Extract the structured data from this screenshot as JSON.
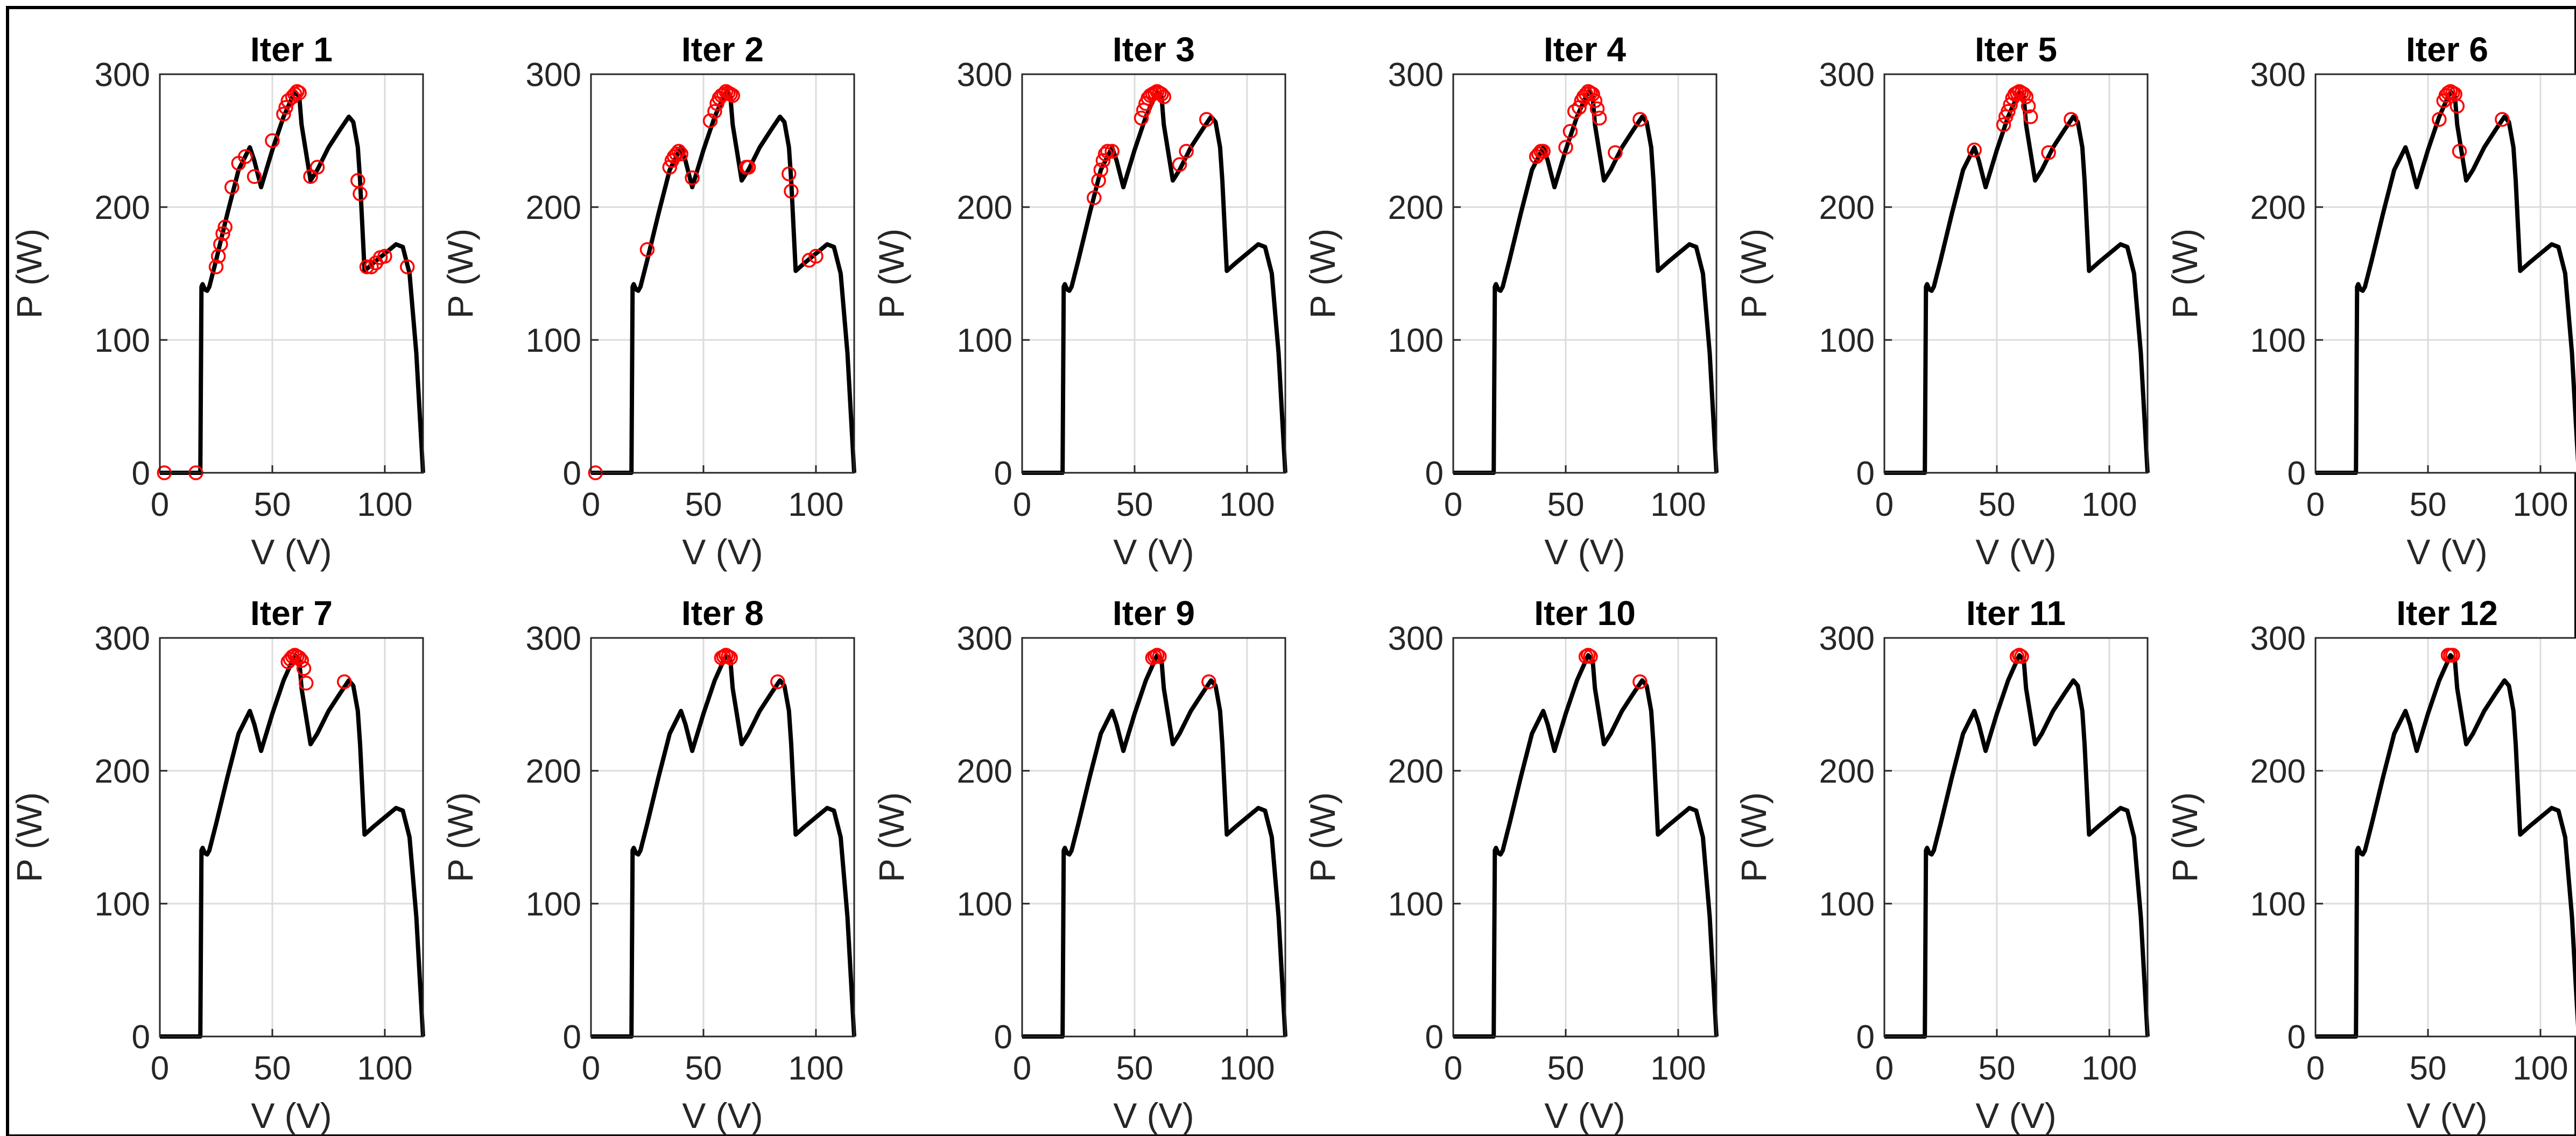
{
  "chart_data": {
    "type": "scatter",
    "layout": {
      "rows": 2,
      "cols": 6
    },
    "curve": {
      "name": "",
      "x": [
        0,
        18,
        18.5,
        19,
        20,
        21,
        22,
        25,
        30,
        35,
        40,
        42,
        45,
        50,
        55,
        60,
        62,
        63,
        67,
        70,
        75,
        80,
        84,
        86,
        88,
        89,
        91,
        95,
        100,
        105,
        108,
        111,
        114,
        116,
        117
      ],
      "y": [
        0,
        0,
        140,
        142,
        138,
        137,
        140,
        160,
        195,
        228,
        245,
        235,
        215,
        243,
        268,
        287,
        283,
        262,
        220,
        228,
        245,
        258,
        268,
        264,
        245,
        220,
        152,
        158,
        165,
        172,
        170,
        150,
        90,
        30,
        0
      ]
    },
    "panels": [
      {
        "title": "Iter 1",
        "xlabel": "V (V)",
        "ylabel": "P (W)",
        "xlim": [
          0,
          117
        ],
        "ylim": [
          0,
          300
        ],
        "xticks": [
          0,
          50,
          100
        ],
        "yticks": [
          0,
          100,
          200,
          300
        ],
        "points": {
          "x": [
            2,
            16,
            25,
            26,
            27,
            28,
            29,
            32,
            35,
            38,
            42,
            50,
            55,
            56,
            57,
            59,
            60,
            61,
            62,
            67,
            70,
            88,
            89,
            92,
            94,
            96,
            98,
            100,
            110
          ],
          "y": [
            0,
            0,
            155,
            163,
            172,
            180,
            185,
            215,
            233,
            238,
            223,
            250,
            270,
            275,
            280,
            283,
            285,
            287,
            286,
            223,
            230,
            220,
            210,
            155,
            155,
            158,
            162,
            163,
            155
          ]
        }
      },
      {
        "title": "Iter 2",
        "xlabel": "V (V)",
        "ylabel": "P (W)",
        "xlim": [
          0,
          117
        ],
        "ylim": [
          0,
          300
        ],
        "xticks": [
          0,
          50,
          100
        ],
        "yticks": [
          0,
          100,
          200,
          300
        ],
        "points": {
          "x": [
            2,
            25,
            35,
            36,
            37,
            38,
            39,
            40,
            45,
            53,
            55,
            56,
            57,
            58,
            59,
            60,
            61,
            62,
            63,
            69,
            70,
            88,
            89,
            97,
            100
          ],
          "y": [
            0,
            168,
            230,
            235,
            238,
            240,
            242,
            240,
            222,
            265,
            272,
            278,
            282,
            284,
            285,
            287,
            286,
            285,
            284,
            230,
            230,
            225,
            212,
            160,
            163
          ]
        }
      },
      {
        "title": "Iter 3",
        "xlabel": "V (V)",
        "ylabel": "P (W)",
        "xlim": [
          0,
          117
        ],
        "ylim": [
          0,
          300
        ],
        "xticks": [
          0,
          50,
          100
        ],
        "yticks": [
          0,
          100,
          200,
          300
        ],
        "points": {
          "x": [
            32,
            34,
            35,
            36,
            37,
            38,
            40,
            53,
            54,
            55,
            56,
            57,
            58,
            59,
            60,
            61,
            62,
            63,
            70,
            73,
            82
          ],
          "y": [
            207,
            220,
            228,
            235,
            240,
            242,
            242,
            267,
            273,
            278,
            282,
            284,
            285,
            286,
            287,
            286,
            285,
            283,
            232,
            242,
            266
          ]
        }
      },
      {
        "title": "Iter 4",
        "xlabel": "V (V)",
        "ylabel": "P (W)",
        "xlim": [
          0,
          117
        ],
        "ylim": [
          0,
          300
        ],
        "xticks": [
          0,
          50,
          100
        ],
        "yticks": [
          0,
          100,
          200,
          300
        ],
        "points": {
          "x": [
            37,
            38,
            39,
            40,
            50,
            52,
            54,
            56,
            57,
            58,
            59,
            60,
            61,
            62,
            63,
            64,
            65,
            72,
            83
          ],
          "y": [
            238,
            240,
            242,
            242,
            245,
            257,
            272,
            275,
            280,
            283,
            285,
            287,
            286,
            285,
            280,
            274,
            267,
            241,
            266
          ]
        }
      },
      {
        "title": "Iter 5",
        "xlabel": "V (V)",
        "ylabel": "P (W)",
        "xlim": [
          0,
          117
        ],
        "ylim": [
          0,
          300
        ],
        "xticks": [
          0,
          50,
          100
        ],
        "yticks": [
          0,
          100,
          200,
          300
        ],
        "points": {
          "x": [
            40,
            53,
            54,
            55,
            56,
            57,
            58,
            59,
            60,
            61,
            62,
            63,
            64,
            65,
            73,
            83
          ],
          "y": [
            243,
            262,
            268,
            272,
            277,
            282,
            285,
            286,
            287,
            286,
            285,
            283,
            276,
            268,
            241,
            266
          ]
        }
      },
      {
        "title": "Iter 6",
        "xlabel": "V (V)",
        "ylabel": "P (W)",
        "xlim": [
          0,
          117
        ],
        "ylim": [
          0,
          300
        ],
        "xticks": [
          0,
          50,
          100
        ],
        "yticks": [
          0,
          100,
          200,
          300
        ],
        "points": {
          "x": [
            55,
            57,
            58,
            59,
            60,
            61,
            62,
            63,
            64,
            83
          ],
          "y": [
            266,
            280,
            284,
            286,
            287,
            286,
            285,
            276,
            242,
            266
          ]
        }
      },
      {
        "title": "Iter 7",
        "xlabel": "V (V)",
        "ylabel": "P (W)",
        "xlim": [
          0,
          117
        ],
        "ylim": [
          0,
          300
        ],
        "xticks": [
          0,
          50,
          100
        ],
        "yticks": [
          0,
          100,
          200,
          300
        ],
        "points": {
          "x": [
            57,
            58,
            59,
            60,
            61,
            62,
            63,
            64,
            65,
            82
          ],
          "y": [
            282,
            284,
            286,
            287,
            286,
            285,
            283,
            277,
            266,
            267
          ]
        }
      },
      {
        "title": "Iter 8",
        "xlabel": "V (V)",
        "ylabel": "P (W)",
        "xlim": [
          0,
          117
        ],
        "ylim": [
          0,
          300
        ],
        "xticks": [
          0,
          50,
          100
        ],
        "yticks": [
          0,
          100,
          200,
          300
        ],
        "points": {
          "x": [
            58,
            59,
            60,
            61,
            62,
            83
          ],
          "y": [
            285,
            286,
            287,
            286,
            285,
            267
          ]
        }
      },
      {
        "title": "Iter 9",
        "xlabel": "V (V)",
        "ylabel": "P (W)",
        "xlim": [
          0,
          117
        ],
        "ylim": [
          0,
          300
        ],
        "xticks": [
          0,
          50,
          100
        ],
        "yticks": [
          0,
          100,
          200,
          300
        ],
        "points": {
          "x": [
            58,
            59,
            60,
            61,
            83
          ],
          "y": [
            285,
            286,
            287,
            286,
            267
          ]
        }
      },
      {
        "title": "Iter 10",
        "xlabel": "V (V)",
        "ylabel": "P (W)",
        "xlim": [
          0,
          117
        ],
        "ylim": [
          0,
          300
        ],
        "xticks": [
          0,
          50,
          100
        ],
        "yticks": [
          0,
          100,
          200,
          300
        ],
        "points": {
          "x": [
            59,
            60,
            61,
            83
          ],
          "y": [
            286,
            287,
            286,
            267
          ]
        }
      },
      {
        "title": "Iter 11",
        "xlabel": "V (V)",
        "ylabel": "P (W)",
        "xlim": [
          0,
          117
        ],
        "ylim": [
          0,
          300
        ],
        "xticks": [
          0,
          50,
          100
        ],
        "yticks": [
          0,
          100,
          200,
          300
        ],
        "points": {
          "x": [
            59,
            60,
            61
          ],
          "y": [
            286,
            287,
            286
          ]
        }
      },
      {
        "title": "Iter 12",
        "xlabel": "V (V)",
        "ylabel": "P (W)",
        "xlim": [
          0,
          117
        ],
        "ylim": [
          0,
          300
        ],
        "xticks": [
          0,
          50,
          100
        ],
        "yticks": [
          0,
          100,
          200,
          300
        ],
        "points": {
          "x": [
            59,
            60,
            61
          ],
          "y": [
            287,
            287,
            287
          ]
        }
      }
    ],
    "grid": true,
    "colors": {
      "curve": "#000000",
      "markers": "#ff0000",
      "grid": "#dcdcdc",
      "axes": "#262626"
    }
  }
}
